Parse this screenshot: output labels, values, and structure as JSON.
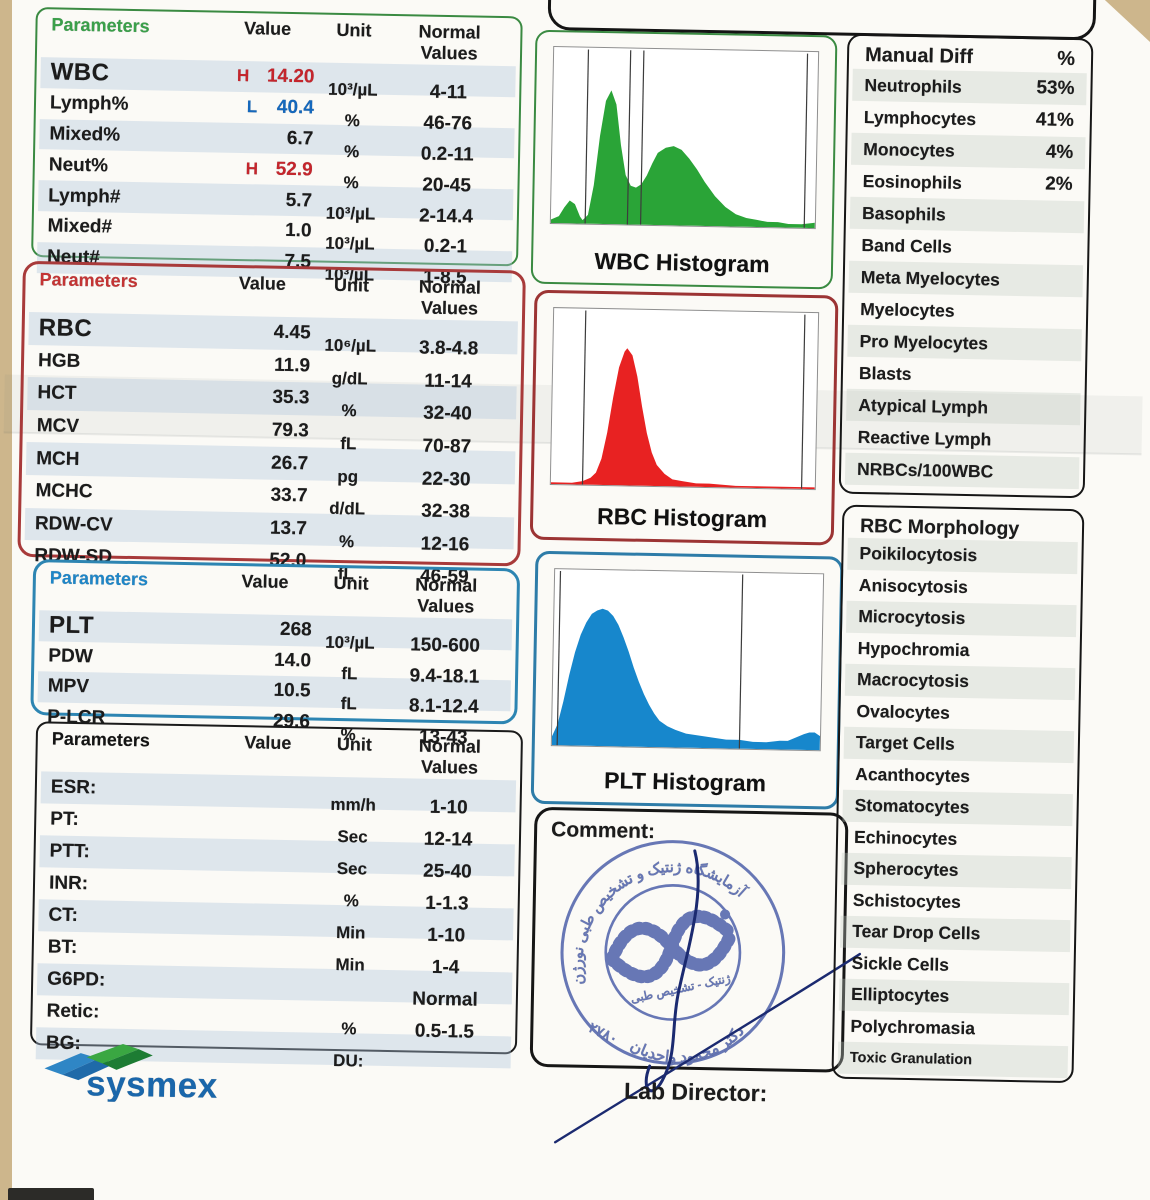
{
  "colors": {
    "wbc_accent": "#3aa04a",
    "rbc_accent": "#c43434",
    "plt_accent": "#1e86c8",
    "flag_high": "#c5252c",
    "flag_low": "#1468bd",
    "stamp_blue": "#5b6cb0",
    "signature_navy": "#1b2a70",
    "logo_blue": "#1a67ab",
    "logo_green": "#3aa742"
  },
  "wbc_table": {
    "headers": {
      "param": "Parameters",
      "value": "Value",
      "unit": "Unit",
      "normal": "Normal Values"
    },
    "rows": [
      {
        "param": "WBC",
        "flag": "H",
        "value": "14.20",
        "unit": "10³/µL",
        "normal": "4-11"
      },
      {
        "param": "Lymph%",
        "flag": "L",
        "value": "40.4",
        "unit": "%",
        "normal": "46-76"
      },
      {
        "param": "Mixed%",
        "flag": "",
        "value": "6.7",
        "unit": "%",
        "normal": "0.2-11"
      },
      {
        "param": "Neut%",
        "flag": "H",
        "value": "52.9",
        "unit": "%",
        "normal": "20-45"
      },
      {
        "param": "Lymph#",
        "flag": "",
        "value": "5.7",
        "unit": "10³/µL",
        "normal": "2-14.4"
      },
      {
        "param": "Mixed#",
        "flag": "",
        "value": "1.0",
        "unit": "10³/µL",
        "normal": "0.2-1"
      },
      {
        "param": "Neut#",
        "flag": "",
        "value": "7.5",
        "unit": "10³/µL",
        "normal": "1-8.5"
      }
    ]
  },
  "rbc_table": {
    "headers": {
      "param": "Parameters",
      "value": "Value",
      "unit": "Unit",
      "normal": "Normal Values"
    },
    "rows": [
      {
        "param": "RBC",
        "flag": "",
        "value": "4.45",
        "unit": "10⁶/µL",
        "normal": "3.8-4.8"
      },
      {
        "param": "HGB",
        "flag": "",
        "value": "11.9",
        "unit": "g/dL",
        "normal": "11-14"
      },
      {
        "param": "HCT",
        "flag": "",
        "value": "35.3",
        "unit": "%",
        "normal": "32-40"
      },
      {
        "param": "MCV",
        "flag": "",
        "value": "79.3",
        "unit": "fL",
        "normal": "70-87"
      },
      {
        "param": "MCH",
        "flag": "",
        "value": "26.7",
        "unit": "pg",
        "normal": "22-30"
      },
      {
        "param": "MCHC",
        "flag": "",
        "value": "33.7",
        "unit": "d/dL",
        "normal": "32-38"
      },
      {
        "param": "RDW-CV",
        "flag": "",
        "value": "13.7",
        "unit": "%",
        "normal": "12-16"
      },
      {
        "param": "RDW-SD",
        "flag": "",
        "value": "52.0",
        "unit": "fL",
        "normal": "46-59"
      }
    ]
  },
  "plt_table": {
    "headers": {
      "param": "Parameters",
      "value": "Value",
      "unit": "Unit",
      "normal": "Normal Values"
    },
    "rows": [
      {
        "param": "PLT",
        "flag": "",
        "value": "268",
        "unit": "10³/µL",
        "normal": "150-600"
      },
      {
        "param": "PDW",
        "flag": "",
        "value": "14.0",
        "unit": "fL",
        "normal": "9.4-18.1"
      },
      {
        "param": "MPV",
        "flag": "",
        "value": "10.5",
        "unit": "fL",
        "normal": "8.1-12.4"
      },
      {
        "param": "P-LCR",
        "flag": "",
        "value": "29.6",
        "unit": "%",
        "normal": "13-43"
      }
    ]
  },
  "coag_table": {
    "headers": {
      "param": "Parameters",
      "value": "Value",
      "unit": "Unit",
      "normal": "Normal Values"
    },
    "rows": [
      {
        "param": "ESR:",
        "flag": "",
        "value": "",
        "unit": "mm/h",
        "normal": "1-10"
      },
      {
        "param": "PT:",
        "flag": "",
        "value": "",
        "unit": "Sec",
        "normal": "12-14"
      },
      {
        "param": "PTT:",
        "flag": "",
        "value": "",
        "unit": "Sec",
        "normal": "25-40"
      },
      {
        "param": "INR:",
        "flag": "",
        "value": "",
        "unit": "%",
        "normal": "1-1.3"
      },
      {
        "param": "CT:",
        "flag": "",
        "value": "",
        "unit": "Min",
        "normal": "1-10"
      },
      {
        "param": "BT:",
        "flag": "",
        "value": "",
        "unit": "Min",
        "normal": "1-4"
      },
      {
        "param": "G6PD:",
        "flag": "",
        "value": "",
        "unit": "",
        "normal": "Normal"
      },
      {
        "param": "Retic:",
        "flag": "",
        "value": "",
        "unit": "%",
        "normal": "0.5-1.5"
      },
      {
        "param": "BG:",
        "flag": "",
        "value": "",
        "unit": "DU:",
        "normal": ""
      }
    ]
  },
  "manual_diff": {
    "title": "Manual Diff",
    "unit_header": "%",
    "rows": [
      {
        "label": "Neutrophils",
        "value": "53%"
      },
      {
        "label": "Lymphocytes",
        "value": "41%"
      },
      {
        "label": "Monocytes",
        "value": "4%"
      },
      {
        "label": "Eosinophils",
        "value": "2%"
      },
      {
        "label": "Basophils",
        "value": ""
      },
      {
        "label": "Band Cells",
        "value": ""
      },
      {
        "label": "Meta Myelocytes",
        "value": ""
      },
      {
        "label": "Myelocytes",
        "value": ""
      },
      {
        "label": "Pro Myelocytes",
        "value": ""
      },
      {
        "label": "Blasts",
        "value": ""
      },
      {
        "label": "Atypical Lymph",
        "value": ""
      },
      {
        "label": "Reactive Lymph",
        "value": ""
      },
      {
        "label": "NRBCs/100WBC",
        "value": ""
      }
    ]
  },
  "rbc_morphology": {
    "title": "RBC Morphology",
    "rows": [
      {
        "label": "Poikilocytosis",
        "value": ""
      },
      {
        "label": "Anisocytosis",
        "value": ""
      },
      {
        "label": "Microcytosis",
        "value": ""
      },
      {
        "label": "Hypochromia",
        "value": ""
      },
      {
        "label": "Macrocytosis",
        "value": ""
      },
      {
        "label": "Ovalocytes",
        "value": ""
      },
      {
        "label": "Target Cells",
        "value": ""
      },
      {
        "label": "Acanthocytes",
        "value": ""
      },
      {
        "label": "Stomatocytes",
        "value": ""
      },
      {
        "label": "Echinocytes",
        "value": ""
      },
      {
        "label": "Spherocytes",
        "value": ""
      },
      {
        "label": "Schistocytes",
        "value": ""
      },
      {
        "label": "Tear Drop Cells",
        "value": ""
      },
      {
        "label": "Sickle Cells",
        "value": ""
      },
      {
        "label": "Elliptocytes",
        "value": ""
      },
      {
        "label": "Polychromasia",
        "value": ""
      },
      {
        "label": "Toxic Granulation",
        "value": ""
      }
    ]
  },
  "histograms": {
    "wbc": {
      "type": "area",
      "title": "WBC Histogram",
      "color": "#2aa437",
      "lines": [
        13,
        29,
        34,
        96
      ],
      "points": [
        [
          0,
          98
        ],
        [
          3,
          96
        ],
        [
          5,
          91
        ],
        [
          7,
          87
        ],
        [
          9,
          89
        ],
        [
          11,
          96
        ],
        [
          12,
          98
        ],
        [
          14,
          95
        ],
        [
          16,
          78
        ],
        [
          18,
          50
        ],
        [
          20,
          30
        ],
        [
          22,
          24
        ],
        [
          24,
          32
        ],
        [
          26,
          55
        ],
        [
          28,
          72
        ],
        [
          30,
          78
        ],
        [
          32,
          79
        ],
        [
          34,
          77
        ],
        [
          36,
          72
        ],
        [
          38,
          65
        ],
        [
          40,
          59
        ],
        [
          43,
          56
        ],
        [
          46,
          55
        ],
        [
          49,
          57
        ],
        [
          52,
          62
        ],
        [
          55,
          68
        ],
        [
          58,
          75
        ],
        [
          62,
          83
        ],
        [
          66,
          89
        ],
        [
          70,
          93
        ],
        [
          74,
          95
        ],
        [
          78,
          96
        ],
        [
          82,
          97
        ],
        [
          86,
          97
        ],
        [
          90,
          98
        ],
        [
          95,
          98
        ],
        [
          100,
          97
        ]
      ]
    },
    "rbc": {
      "type": "area",
      "title": "RBC Histogram",
      "color": "#e82222",
      "lines": [
        12,
        95
      ],
      "points": [
        [
          0,
          99
        ],
        [
          8,
          99
        ],
        [
          12,
          98
        ],
        [
          15,
          96
        ],
        [
          17,
          93
        ],
        [
          19,
          85
        ],
        [
          21,
          70
        ],
        [
          23,
          50
        ],
        [
          25,
          33
        ],
        [
          27,
          24
        ],
        [
          28,
          22
        ],
        [
          30,
          26
        ],
        [
          32,
          38
        ],
        [
          34,
          55
        ],
        [
          36,
          70
        ],
        [
          38,
          81
        ],
        [
          40,
          88
        ],
        [
          43,
          93
        ],
        [
          46,
          96
        ],
        [
          50,
          97
        ],
        [
          55,
          98
        ],
        [
          60,
          98
        ],
        [
          70,
          99
        ],
        [
          80,
          99
        ],
        [
          90,
          99
        ],
        [
          100,
          99
        ]
      ]
    },
    "plt": {
      "type": "area",
      "title": "PLT Histogram",
      "color": "#1787cc",
      "lines": [
        2,
        70
      ],
      "points": [
        [
          0,
          95
        ],
        [
          2,
          88
        ],
        [
          4,
          75
        ],
        [
          6,
          60
        ],
        [
          8,
          47
        ],
        [
          10,
          37
        ],
        [
          12,
          30
        ],
        [
          14,
          25
        ],
        [
          16,
          23
        ],
        [
          18,
          22
        ],
        [
          20,
          23
        ],
        [
          22,
          26
        ],
        [
          24,
          31
        ],
        [
          26,
          38
        ],
        [
          28,
          46
        ],
        [
          30,
          55
        ],
        [
          32,
          63
        ],
        [
          34,
          70
        ],
        [
          36,
          76
        ],
        [
          38,
          81
        ],
        [
          40,
          85
        ],
        [
          43,
          88
        ],
        [
          46,
          90
        ],
        [
          50,
          92
        ],
        [
          55,
          93
        ],
        [
          60,
          94
        ],
        [
          65,
          95
        ],
        [
          70,
          95
        ],
        [
          75,
          96
        ],
        [
          80,
          96
        ],
        [
          85,
          95
        ],
        [
          88,
          95
        ],
        [
          91,
          93
        ],
        [
          94,
          91
        ],
        [
          96,
          90
        ],
        [
          98,
          90
        ],
        [
          100,
          92
        ]
      ]
    }
  },
  "comment": {
    "label": "Comment:",
    "lab_director": "Lab Director:"
  },
  "stamp": {
    "top_text": "آزمایشگاه ژنتیک و تشخیص طبی نورژن",
    "center_text": "ژنتیک - تشخیص طبی",
    "bottom_text": "دکتر محمود واحدیان",
    "number": "۲۷۸۰"
  },
  "branding": {
    "logo_text": "sysmex"
  }
}
